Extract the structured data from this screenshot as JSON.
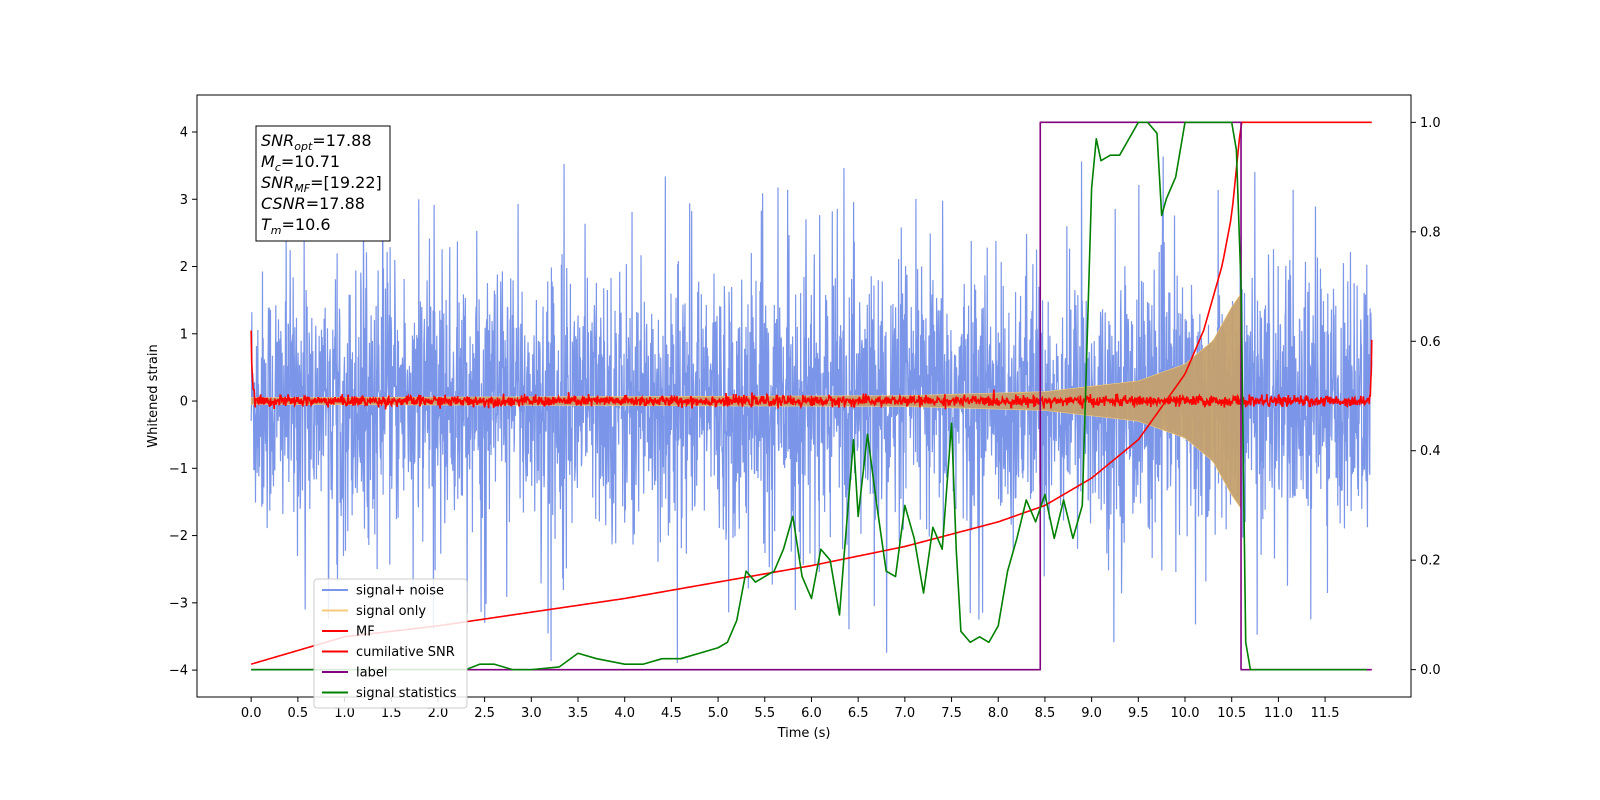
{
  "chart_data": {
    "type": "line",
    "title": "",
    "xlabel": "Time (s)",
    "ylabel": "Whitened strain",
    "xlim": [
      -0.58,
      12.42
    ],
    "ylim": [
      -4.4,
      4.55
    ],
    "y2lim": [
      -0.05,
      1.05
    ],
    "xticks": [
      "0.0",
      "0.5",
      "1.0",
      "1.5",
      "2.0",
      "2.5",
      "3.0",
      "3.5",
      "4.0",
      "4.5",
      "5.0",
      "5.5",
      "6.0",
      "6.5",
      "7.0",
      "7.5",
      "8.0",
      "8.5",
      "9.0",
      "9.5",
      "10.0",
      "10.5",
      "11.0",
      "11.5"
    ],
    "yticks": [
      "4",
      "3",
      "2",
      "1",
      "0",
      "−1",
      "−2",
      "−3",
      "−4"
    ],
    "y2ticks": [
      "1.0",
      "0.8",
      "0.6",
      "0.4",
      "0.2",
      "0.0"
    ],
    "grid": false,
    "legend_position": "lower-left",
    "annotation": [
      {
        "main": "SNR",
        "sub": "opt",
        "rest": "=17.88"
      },
      {
        "main": "M",
        "sub": "c",
        "rest": "=10.71"
      },
      {
        "main": "SNR",
        "sub": "MF",
        "rest": "=[19.22]"
      },
      {
        "main": "CSNR",
        "sub": "",
        "rest": "=17.88"
      },
      {
        "main": "T",
        "sub": "m",
        "rest": "=10.6"
      }
    ],
    "series": [
      {
        "name": "signal+ noise",
        "color": "#7b96e8",
        "axis": "left",
        "x_range": [
          0.0,
          12.0
        ],
        "noise_sigma": 1.0,
        "peak_max": 3.9,
        "peak_min": -3.9
      },
      {
        "name": "signal only",
        "color": "#f5cb7a",
        "axis": "left",
        "x_range": [
          0.0,
          10.6
        ],
        "envelope": {
          "x": [
            0.0,
            7.0,
            8.5,
            9.5,
            10.0,
            10.3,
            10.5,
            10.6
          ],
          "y": [
            0.05,
            0.08,
            0.14,
            0.3,
            0.55,
            0.9,
            1.4,
            1.6
          ]
        }
      },
      {
        "name": "MF",
        "color": "#ff0000",
        "axis": "left",
        "x_range": [
          0.0,
          12.0
        ],
        "start": 1.0,
        "end": 0.9,
        "noise_sigma": 0.04
      },
      {
        "name": "cumilative SNR",
        "color": "#ff0000",
        "axis": "right",
        "x": [
          0.0,
          1.0,
          2.0,
          3.0,
          4.0,
          5.0,
          6.0,
          7.0,
          8.0,
          8.5,
          9.0,
          9.5,
          10.0,
          10.2,
          10.4,
          10.5,
          10.6,
          12.0
        ],
        "y": [
          0.01,
          0.06,
          0.08,
          0.105,
          0.13,
          0.16,
          0.19,
          0.225,
          0.27,
          0.3,
          0.35,
          0.42,
          0.54,
          0.62,
          0.74,
          0.83,
          1.0,
          1.0
        ]
      },
      {
        "name": "label",
        "color": "#800080",
        "axis": "right",
        "x": [
          0.0,
          8.45,
          8.45,
          10.6,
          10.6,
          12.0
        ],
        "y": [
          0.0,
          0.0,
          1.0,
          1.0,
          0.0,
          0.0
        ]
      },
      {
        "name": "signal statistics",
        "color": "#008000",
        "axis": "right",
        "x": [
          0.0,
          0.5,
          1.0,
          1.5,
          2.0,
          2.3,
          2.45,
          2.6,
          2.8,
          3.0,
          3.3,
          3.5,
          3.7,
          4.0,
          4.2,
          4.4,
          4.6,
          4.8,
          5.0,
          5.1,
          5.2,
          5.3,
          5.4,
          5.5,
          5.6,
          5.7,
          5.8,
          5.9,
          6.0,
          6.1,
          6.2,
          6.3,
          6.35,
          6.45,
          6.5,
          6.6,
          6.7,
          6.8,
          6.9,
          7.0,
          7.1,
          7.2,
          7.3,
          7.4,
          7.5,
          7.55,
          7.6,
          7.7,
          7.8,
          7.9,
          8.0,
          8.1,
          8.2,
          8.3,
          8.4,
          8.5,
          8.6,
          8.7,
          8.8,
          8.9,
          9.0,
          9.05,
          9.1,
          9.2,
          9.3,
          9.4,
          9.5,
          9.6,
          9.7,
          9.75,
          9.8,
          9.9,
          10.0,
          10.1,
          10.2,
          10.3,
          10.4,
          10.5,
          10.55,
          10.6,
          10.65,
          10.7,
          11.0,
          11.5,
          11.95
        ],
        "y": [
          0.0,
          0.0,
          0.0,
          0.0,
          0.0,
          0.0,
          0.01,
          0.01,
          0.0,
          0.0,
          0.005,
          0.03,
          0.02,
          0.01,
          0.01,
          0.02,
          0.02,
          0.03,
          0.04,
          0.05,
          0.09,
          0.18,
          0.16,
          0.17,
          0.18,
          0.22,
          0.28,
          0.17,
          0.13,
          0.22,
          0.2,
          0.1,
          0.21,
          0.42,
          0.28,
          0.43,
          0.3,
          0.18,
          0.17,
          0.3,
          0.24,
          0.14,
          0.26,
          0.22,
          0.45,
          0.22,
          0.07,
          0.05,
          0.06,
          0.05,
          0.08,
          0.18,
          0.24,
          0.31,
          0.27,
          0.32,
          0.24,
          0.31,
          0.24,
          0.3,
          0.88,
          0.97,
          0.93,
          0.94,
          0.94,
          0.97,
          1.0,
          1.0,
          0.98,
          0.83,
          0.86,
          0.9,
          1.0,
          1.0,
          1.0,
          1.0,
          1.0,
          1.0,
          0.95,
          0.7,
          0.05,
          0.0,
          0.0,
          0.0,
          0.0
        ]
      }
    ]
  }
}
